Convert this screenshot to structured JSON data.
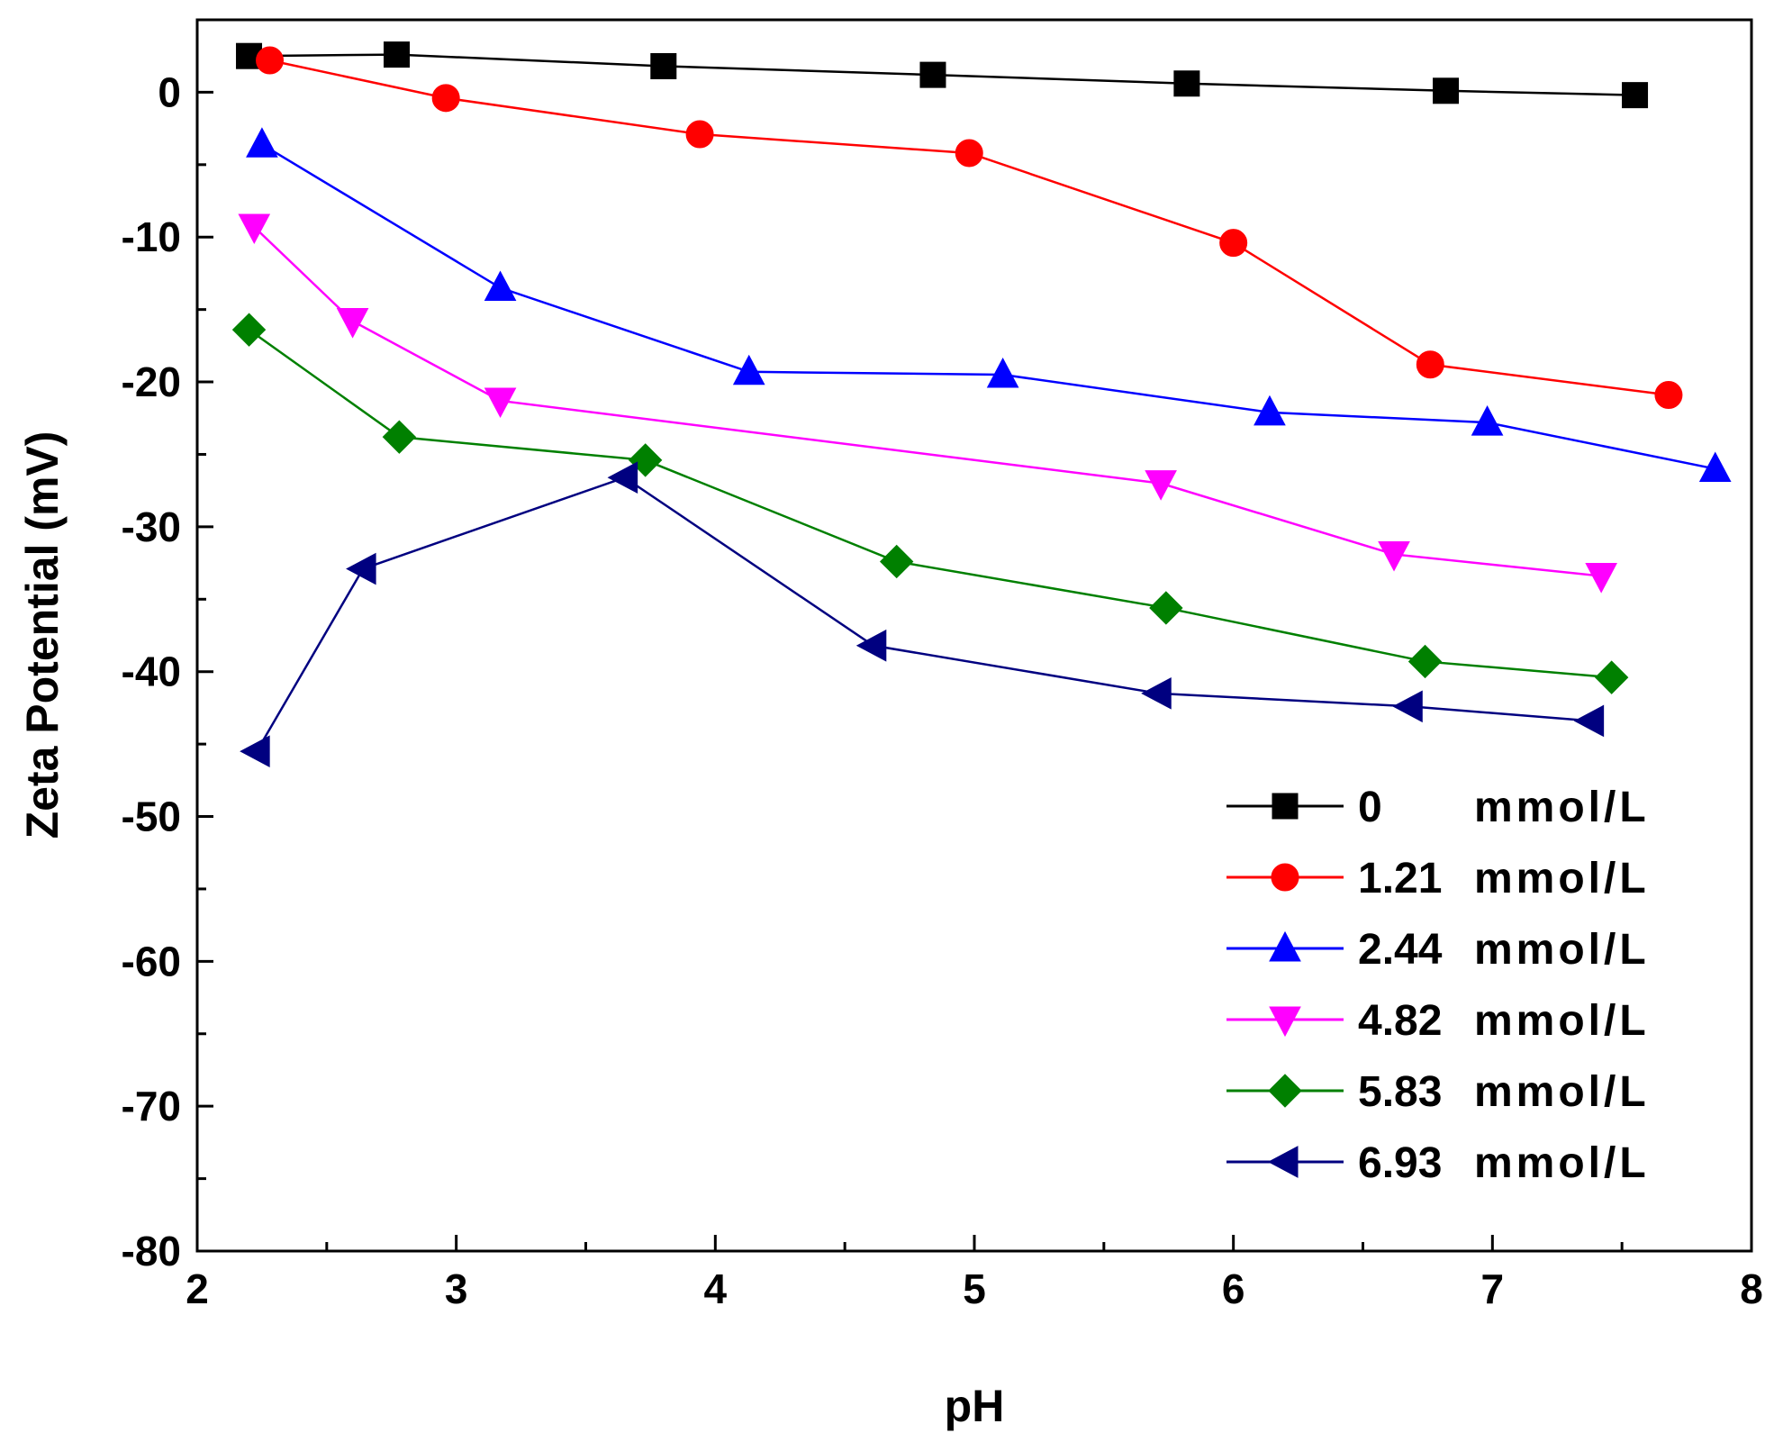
{
  "chart_data": {
    "type": "line",
    "title": "",
    "xlabel": "pH",
    "ylabel": "Zeta Potential (mV)",
    "xlim": [
      2,
      8
    ],
    "ylim": [
      -80,
      5
    ],
    "xticks": [
      2,
      3,
      4,
      5,
      6,
      7,
      8
    ],
    "yticks": [
      0,
      -10,
      -20,
      -30,
      -40,
      -50,
      -60,
      -70,
      -80
    ],
    "grid": false,
    "legend_position": "bottom-right",
    "series": [
      {
        "name": "0 mmol/L",
        "legend_value": "0",
        "legend_unit": "mmol/L",
        "color": "#000000",
        "marker": "square",
        "x": [
          2.2,
          2.77,
          3.8,
          4.84,
          5.82,
          6.82,
          7.55
        ],
        "y": [
          2.5,
          2.6,
          1.8,
          1.2,
          0.6,
          0.1,
          -0.2
        ]
      },
      {
        "name": "1.21 mmol/L",
        "legend_value": "1.21",
        "legend_unit": "mmol/L",
        "color": "#ff0000",
        "marker": "circle",
        "x": [
          2.28,
          2.96,
          3.94,
          4.98,
          6.0,
          6.76,
          7.68
        ],
        "y": [
          2.2,
          -0.4,
          -2.9,
          -4.2,
          -10.4,
          -18.8,
          -20.9
        ]
      },
      {
        "name": "2.44 mmol/L",
        "legend_value": "2.44",
        "legend_unit": "mmol/L",
        "color": "#0000ff",
        "marker": "triangle-up",
        "x": [
          2.25,
          3.17,
          4.13,
          5.11,
          6.14,
          6.98,
          7.86
        ],
        "y": [
          -3.6,
          -13.5,
          -19.3,
          -19.5,
          -22.1,
          -22.8,
          -26.0
        ]
      },
      {
        "name": "4.82 mmol/L",
        "legend_value": "4.82",
        "legend_unit": "mmol/L",
        "color": "#ff00ff",
        "marker": "triangle-down",
        "x": [
          2.22,
          2.6,
          3.17,
          5.72,
          6.62,
          7.42
        ],
        "y": [
          -9.3,
          -15.8,
          -21.3,
          -27.0,
          -31.9,
          -33.4
        ]
      },
      {
        "name": "5.83 mmol/L",
        "legend_value": "5.83",
        "legend_unit": "mmol/L",
        "color": "#008000",
        "marker": "diamond",
        "x": [
          2.2,
          2.78,
          3.73,
          4.7,
          5.74,
          6.74,
          7.46
        ],
        "y": [
          -16.4,
          -23.8,
          -25.4,
          -32.4,
          -35.6,
          -39.3,
          -40.4
        ]
      },
      {
        "name": "6.93 mmol/L",
        "legend_value": "6.93",
        "legend_unit": "mmol/L",
        "color": "#000080",
        "marker": "triangle-left",
        "x": [
          2.23,
          2.64,
          3.65,
          4.61,
          5.71,
          6.68,
          7.38
        ],
        "y": [
          -45.5,
          -32.9,
          -26.6,
          -38.2,
          -41.5,
          -42.4,
          -43.4
        ]
      }
    ]
  }
}
